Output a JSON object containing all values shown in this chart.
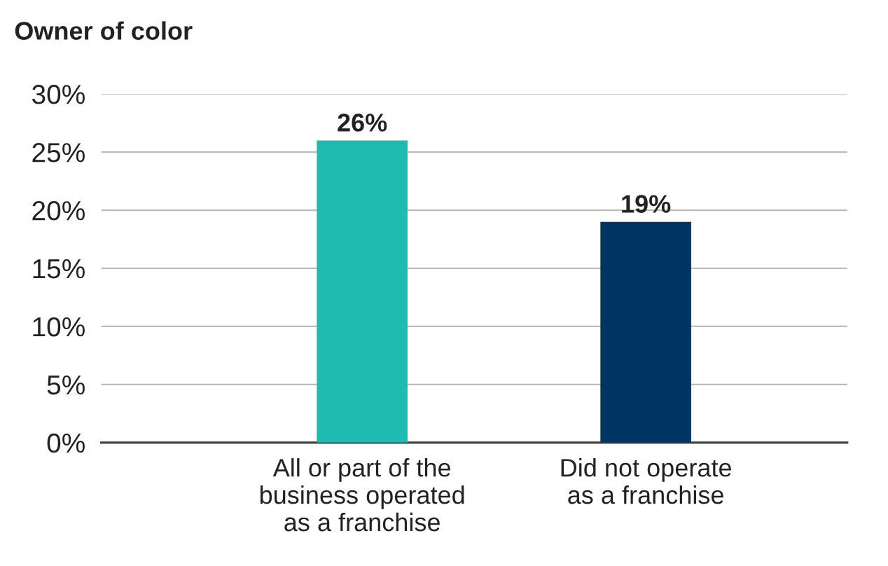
{
  "chart_data": {
    "type": "bar",
    "title": "Owner of color",
    "categories": [
      "All or part of the\nbusiness operated\nas a franchise",
      "Did not operate\nas a franchise"
    ],
    "values": [
      26,
      19
    ],
    "colors": [
      "#1fbbb0",
      "#003462"
    ],
    "value_labels": [
      "26%",
      "19%"
    ],
    "ylim": [
      0,
      30
    ],
    "yticks": [
      {
        "value": 0,
        "label": "0%"
      },
      {
        "value": 5,
        "label": "5%"
      },
      {
        "value": 10,
        "label": "10%"
      },
      {
        "value": 15,
        "label": "15%"
      },
      {
        "value": 20,
        "label": "20%"
      },
      {
        "value": 25,
        "label": "25%"
      },
      {
        "value": 30,
        "label": "30%"
      }
    ],
    "grid": "y",
    "legend": false
  }
}
